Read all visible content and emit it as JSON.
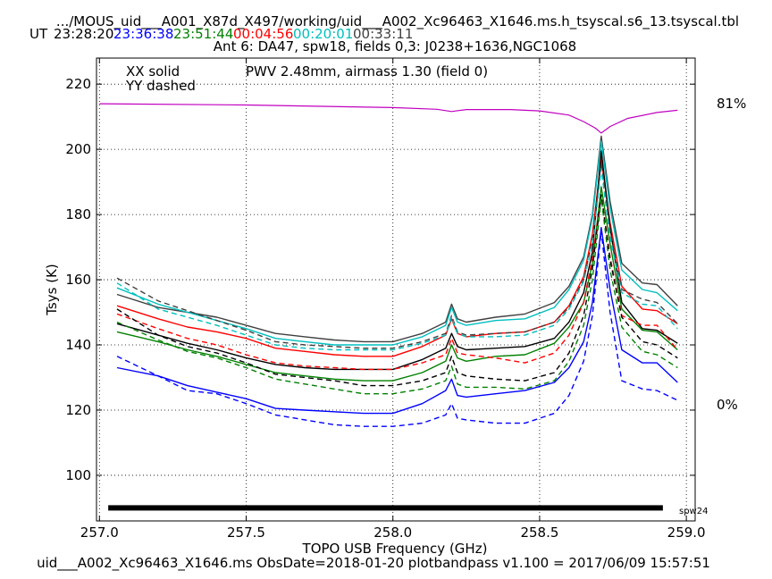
{
  "header": {
    "title": ".../MOUS_uid___A001_X87d_X497/working/uid___A002_Xc96463_X1646.ms.h_tsyscal.s6_13.tsyscal.tbl",
    "ut_label": "UT",
    "times": [
      {
        "text": "23:28:20",
        "color": "#000000"
      },
      {
        "text": "23:36:38",
        "color": "#0000ff"
      },
      {
        "text": "23:51:44",
        "color": "#008000"
      },
      {
        "text": "00:04:56",
        "color": "#ff0000"
      },
      {
        "text": "00:20:01",
        "color": "#00bfbf"
      },
      {
        "text": "00:33:11",
        "color": "#404040"
      }
    ],
    "subtitle": "Ant 6: DA47,  spw18,  fields 0,3: J0238+1636,NGC1068"
  },
  "footer": "uid___A002_Xc96463_X1646.ms  ObsDate=2018-01-20   plotbandpass v1.100 = 2017/06/09 15:57:51",
  "chart_data": {
    "type": "line",
    "xlabel": "TOPO USB Frequency (GHz)",
    "ylabel": "Tsys (K)",
    "xlim": [
      256.99,
      259.03
    ],
    "ylim": [
      86,
      228
    ],
    "x_ticks": [
      "257.0",
      "257.5",
      "258.0",
      "258.5",
      "259.0"
    ],
    "y_ticks": [
      "100",
      "120",
      "140",
      "160",
      "180",
      "200",
      "220"
    ],
    "grid": true,
    "legend_text": [
      "XX solid",
      "YY dashed"
    ],
    "pwv_label": "PWV 2.48mm, airmass 1.30 (field 0)",
    "right_axis_labels": {
      "top": "81%",
      "bottom": "0%"
    },
    "spw_label": "spw24",
    "colors": {
      "pwv": "#c000c0",
      "spw_bar": "#000000"
    },
    "x": [
      257.06,
      257.2,
      257.3,
      257.4,
      257.5,
      257.6,
      257.7,
      257.8,
      257.9,
      258.0,
      258.1,
      258.18,
      258.2,
      258.22,
      258.25,
      258.35,
      258.45,
      258.55,
      258.6,
      258.65,
      258.68,
      258.71,
      258.74,
      258.78,
      258.85,
      258.9,
      258.97
    ],
    "series": [
      {
        "color": "#404040",
        "dash": false,
        "values": [
          155.5,
          151.5,
          150,
          148.5,
          146,
          143.5,
          142.5,
          141.5,
          141,
          141,
          143.5,
          147,
          152.5,
          148,
          147,
          148.5,
          149.5,
          153,
          158,
          167,
          180,
          204,
          184,
          165,
          159,
          158.5,
          152
        ]
      },
      {
        "color": "#00bfbf",
        "dash": false,
        "values": [
          157.5,
          152.5,
          150,
          147.5,
          145,
          142,
          141,
          140,
          140,
          140,
          142.5,
          146,
          151.5,
          147,
          146,
          147.5,
          148,
          151.5,
          157,
          166,
          179,
          202.5,
          182,
          163,
          157,
          156,
          150.5
        ]
      },
      {
        "color": "#ff0000",
        "dash": false,
        "values": [
          152,
          148,
          145.5,
          144,
          142,
          139,
          138,
          137,
          136.5,
          136.5,
          139.5,
          143,
          148,
          143.5,
          142.5,
          143.5,
          144,
          147,
          152,
          161,
          174,
          197,
          177.5,
          158,
          151,
          150.5,
          146.5
        ]
      },
      {
        "color": "#000000",
        "dash": false,
        "values": [
          146.5,
          143,
          140.5,
          138.5,
          136,
          134,
          133,
          132.5,
          132.5,
          132.5,
          135.5,
          139,
          143.5,
          139.5,
          138.5,
          139,
          139.5,
          142,
          147,
          156,
          168.5,
          199.5,
          176,
          153,
          145,
          144.5,
          140.5
        ]
      },
      {
        "color": "#008000",
        "dash": false,
        "values": [
          144,
          141,
          138.5,
          136.5,
          134,
          131.5,
          130.5,
          129.5,
          129,
          129,
          131.5,
          135,
          140,
          136,
          135,
          136.5,
          137,
          140.5,
          145.5,
          153,
          165,
          188.5,
          171,
          151,
          144.5,
          144,
          138.5
        ]
      },
      {
        "color": "#0000ff",
        "dash": false,
        "values": [
          133,
          130.5,
          127.5,
          125.5,
          123.5,
          120.5,
          120,
          119.5,
          119,
          119,
          122,
          126,
          129.5,
          124.5,
          124,
          125,
          126,
          128.5,
          133,
          141,
          153,
          176,
          157,
          138.5,
          134.5,
          134.5,
          128.5
        ]
      },
      {
        "color": "#404040",
        "dash": true,
        "values": [
          160.5,
          153.5,
          150.5,
          147.5,
          144.5,
          141,
          140,
          139.5,
          139,
          139,
          141,
          143.5,
          149,
          144,
          143,
          143.5,
          144,
          147,
          151.5,
          160,
          172,
          196,
          175,
          157,
          154,
          153,
          146.5
        ]
      },
      {
        "color": "#00bfbf",
        "dash": true,
        "values": [
          159,
          151,
          148.5,
          146,
          143,
          140,
          139,
          138.5,
          138.5,
          138.5,
          140.5,
          143,
          148.5,
          143.5,
          142.5,
          142.5,
          143,
          146,
          151,
          159.5,
          171,
          194,
          173,
          156,
          152.5,
          152,
          145
        ]
      },
      {
        "color": "#ff0000",
        "dash": true,
        "values": [
          149.5,
          145,
          142,
          140,
          137,
          134.5,
          133.5,
          133,
          132.5,
          132.5,
          134.5,
          137,
          142,
          137.5,
          137,
          136,
          134.5,
          137.5,
          143,
          153,
          166.5,
          186,
          167,
          149,
          146,
          146,
          138.5
        ]
      },
      {
        "color": "#000000",
        "dash": true,
        "values": [
          151,
          143,
          139.5,
          137.5,
          134.5,
          131,
          130,
          129,
          127.5,
          127.5,
          129,
          131.5,
          136.5,
          131.5,
          130.5,
          129.5,
          129,
          131.5,
          137.5,
          149,
          163.5,
          186,
          166,
          148.5,
          141,
          140,
          136
        ]
      },
      {
        "color": "#008000",
        "dash": true,
        "values": [
          147,
          141.5,
          138,
          136,
          133,
          129.5,
          128,
          126.5,
          125,
          125,
          126.5,
          129,
          133.5,
          128,
          127,
          127,
          126.5,
          129,
          135,
          146,
          160,
          185,
          163,
          145.5,
          138,
          137,
          133
        ]
      },
      {
        "color": "#0000ff",
        "dash": true,
        "values": [
          136.5,
          130.5,
          126,
          125,
          122,
          118.5,
          117,
          115.5,
          115,
          115,
          116,
          118.5,
          122,
          117.5,
          117,
          116,
          116,
          119,
          124.5,
          135,
          149,
          175,
          150,
          129,
          126.5,
          126,
          123
        ]
      }
    ],
    "pwv_curve": {
      "x": [
        257.0,
        257.5,
        258.0,
        258.15,
        258.2,
        258.25,
        258.4,
        258.5,
        258.6,
        258.65,
        258.69,
        258.71,
        258.74,
        258.8,
        258.9,
        258.97
      ],
      "values": [
        214,
        213.6,
        212.8,
        212.3,
        211.6,
        212.2,
        212.2,
        211.8,
        210.5,
        208.5,
        206.5,
        205,
        207,
        209.5,
        211.3,
        212
      ]
    },
    "spw_bar": {
      "x_range": [
        257.03,
        258.92
      ],
      "y": 90
    }
  }
}
